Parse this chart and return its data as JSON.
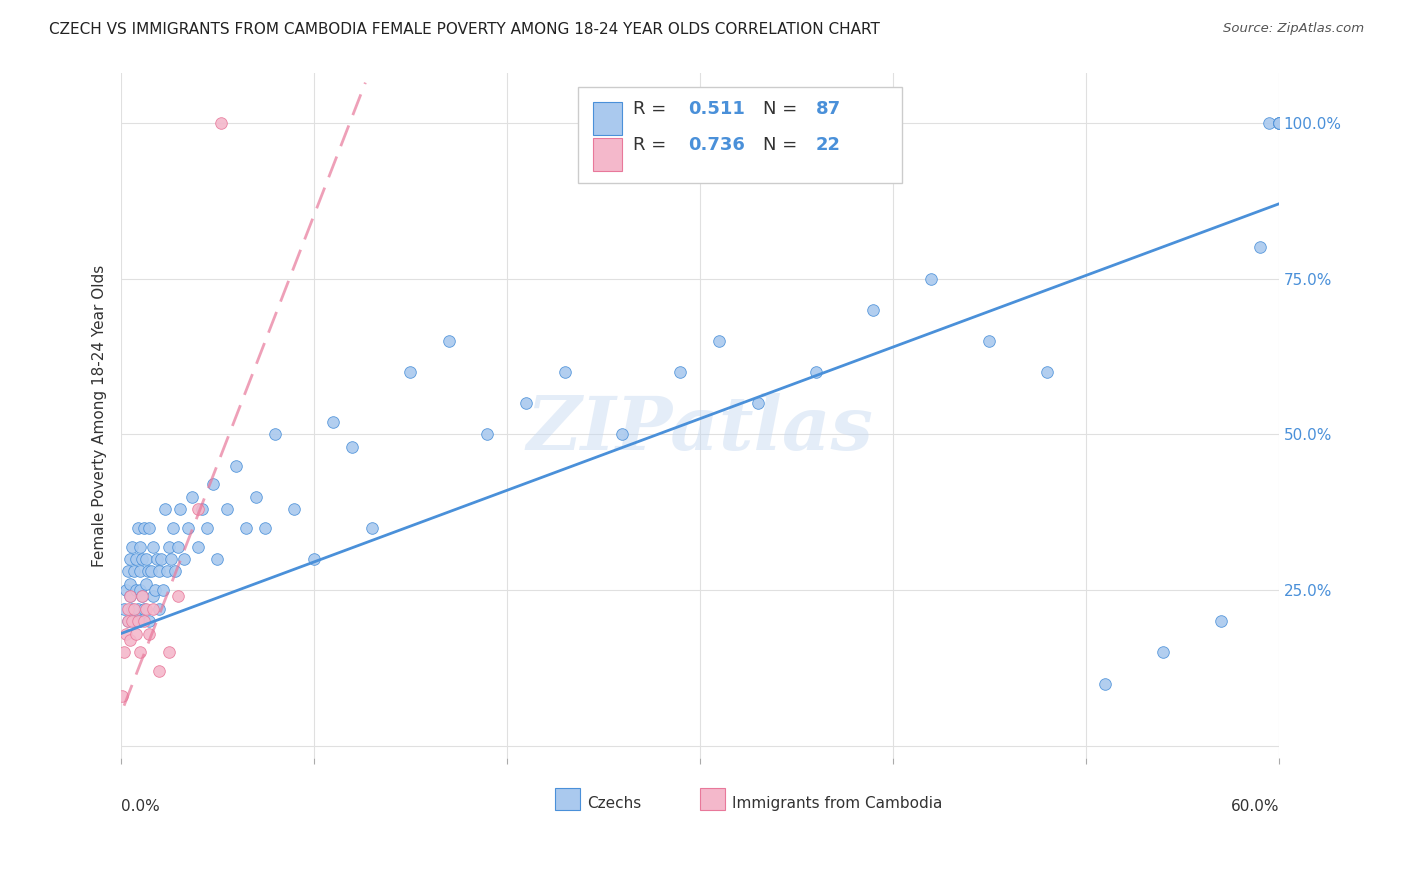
{
  "title": "CZECH VS IMMIGRANTS FROM CAMBODIA FEMALE POVERTY AMONG 18-24 YEAR OLDS CORRELATION CHART",
  "source": "Source: ZipAtlas.com",
  "ylabel": "Female Poverty Among 18-24 Year Olds",
  "xmin": 0.0,
  "xmax": 0.6,
  "ymin": -0.02,
  "ymax": 1.08,
  "watermark": "ZIPatlas",
  "R_czech": 0.511,
  "N_czech": 87,
  "R_cambodia": 0.736,
  "N_cambodia": 22,
  "czech_color": "#aac9ee",
  "cambodia_color": "#f4b8cb",
  "czech_line_color": "#4a90d9",
  "cambodia_line_color": "#e8789a",
  "czech_line_slope": 1.15,
  "czech_line_intercept": 0.18,
  "cambodia_line_slope": 8.0,
  "cambodia_line_intercept": 0.05,
  "czech_x": [
    0.002,
    0.003,
    0.004,
    0.004,
    0.005,
    0.005,
    0.005,
    0.006,
    0.006,
    0.007,
    0.007,
    0.008,
    0.008,
    0.009,
    0.009,
    0.01,
    0.01,
    0.01,
    0.01,
    0.011,
    0.011,
    0.012,
    0.012,
    0.013,
    0.013,
    0.014,
    0.015,
    0.015,
    0.016,
    0.017,
    0.017,
    0.018,
    0.019,
    0.02,
    0.02,
    0.021,
    0.022,
    0.023,
    0.024,
    0.025,
    0.026,
    0.027,
    0.028,
    0.03,
    0.031,
    0.033,
    0.035,
    0.037,
    0.04,
    0.042,
    0.045,
    0.048,
    0.05,
    0.055,
    0.06,
    0.065,
    0.07,
    0.075,
    0.08,
    0.09,
    0.1,
    0.11,
    0.12,
    0.13,
    0.15,
    0.17,
    0.19,
    0.21,
    0.23,
    0.26,
    0.29,
    0.31,
    0.33,
    0.36,
    0.39,
    0.42,
    0.45,
    0.48,
    0.51,
    0.54,
    0.57,
    0.59,
    0.595,
    0.6,
    0.6,
    0.6,
    0.6
  ],
  "czech_y": [
    0.22,
    0.25,
    0.2,
    0.28,
    0.24,
    0.26,
    0.3,
    0.22,
    0.32,
    0.2,
    0.28,
    0.25,
    0.3,
    0.22,
    0.35,
    0.2,
    0.25,
    0.28,
    0.32,
    0.24,
    0.3,
    0.22,
    0.35,
    0.26,
    0.3,
    0.28,
    0.2,
    0.35,
    0.28,
    0.24,
    0.32,
    0.25,
    0.3,
    0.22,
    0.28,
    0.3,
    0.25,
    0.38,
    0.28,
    0.32,
    0.3,
    0.35,
    0.28,
    0.32,
    0.38,
    0.3,
    0.35,
    0.4,
    0.32,
    0.38,
    0.35,
    0.42,
    0.3,
    0.38,
    0.45,
    0.35,
    0.4,
    0.35,
    0.5,
    0.38,
    0.3,
    0.52,
    0.48,
    0.35,
    0.6,
    0.65,
    0.5,
    0.55,
    0.6,
    0.5,
    0.6,
    0.65,
    0.55,
    0.6,
    0.7,
    0.75,
    0.65,
    0.6,
    0.1,
    0.15,
    0.2,
    0.8,
    1.0,
    1.0,
    1.0,
    1.0,
    1.0
  ],
  "cambodia_x": [
    0.001,
    0.002,
    0.003,
    0.004,
    0.004,
    0.005,
    0.005,
    0.006,
    0.007,
    0.008,
    0.009,
    0.01,
    0.011,
    0.012,
    0.013,
    0.015,
    0.017,
    0.02,
    0.025,
    0.03,
    0.04,
    0.052
  ],
  "cambodia_y": [
    0.08,
    0.15,
    0.18,
    0.2,
    0.22,
    0.17,
    0.24,
    0.2,
    0.22,
    0.18,
    0.2,
    0.15,
    0.24,
    0.2,
    0.22,
    0.18,
    0.22,
    0.12,
    0.15,
    0.24,
    0.38,
    1.0
  ],
  "background_color": "#ffffff",
  "grid_color": "#e0e0e0"
}
